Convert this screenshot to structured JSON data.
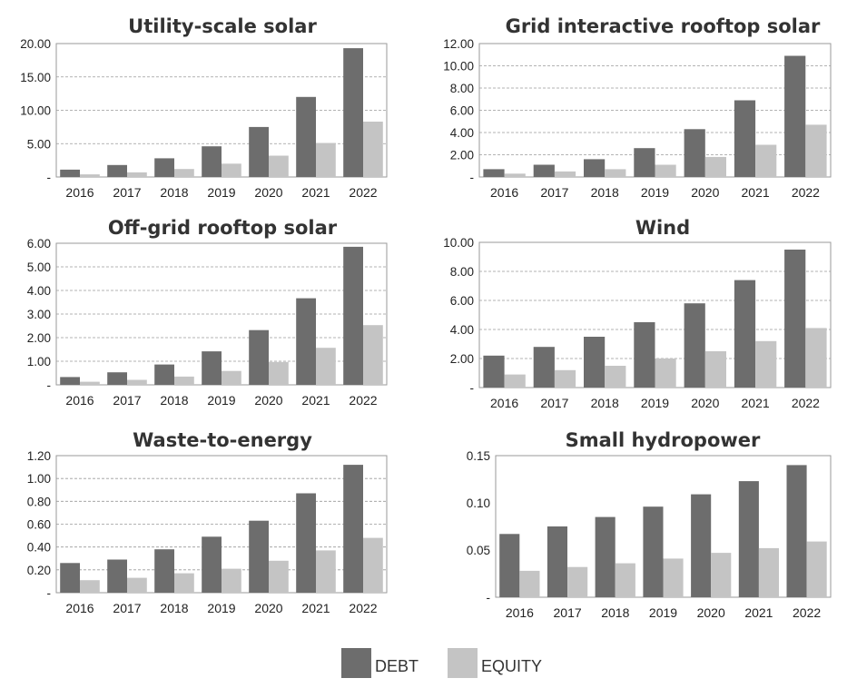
{
  "colors": {
    "debt": "#6d6d6d",
    "equity": "#c4c4c4"
  },
  "legend": {
    "debt_label": "DEBT",
    "equity_label": "EQUITY"
  },
  "chart_data": [
    {
      "type": "bar",
      "title": "Utility-scale solar",
      "categories": [
        "2016",
        "2017",
        "2018",
        "2019",
        "2020",
        "2021",
        "2022"
      ],
      "series": [
        {
          "name": "DEBT",
          "values": [
            1.1,
            1.8,
            2.8,
            4.6,
            7.5,
            12.0,
            19.3
          ]
        },
        {
          "name": "EQUITY",
          "values": [
            0.4,
            0.7,
            1.2,
            2.0,
            3.2,
            5.1,
            8.3
          ]
        }
      ],
      "ylim": [
        0,
        20
      ],
      "yticks": [
        0,
        5,
        10,
        15,
        20
      ],
      "ytick_labels": [
        "-",
        "5.00",
        "10.00",
        "15.00",
        "20.00"
      ]
    },
    {
      "type": "bar",
      "title": "Grid interactive rooftop solar",
      "categories": [
        "2016",
        "2017",
        "2018",
        "2019",
        "2020",
        "2021",
        "2022"
      ],
      "series": [
        {
          "name": "DEBT",
          "values": [
            0.7,
            1.1,
            1.6,
            2.6,
            4.3,
            6.9,
            10.9
          ]
        },
        {
          "name": "EQUITY",
          "values": [
            0.3,
            0.5,
            0.7,
            1.1,
            1.8,
            2.9,
            4.7
          ]
        }
      ],
      "ylim": [
        0,
        12
      ],
      "yticks": [
        0,
        2,
        4,
        6,
        8,
        10,
        12
      ],
      "ytick_labels": [
        "-",
        "2.00",
        "4.00",
        "6.00",
        "8.00",
        "10.00",
        "12.00"
      ]
    },
    {
      "type": "bar",
      "title": "Off-grid rooftop solar",
      "categories": [
        "2016",
        "2017",
        "2018",
        "2019",
        "2020",
        "2021",
        "2022"
      ],
      "series": [
        {
          "name": "DEBT",
          "values": [
            0.33,
            0.53,
            0.86,
            1.42,
            2.32,
            3.67,
            5.85
          ]
        },
        {
          "name": "EQUITY",
          "values": [
            0.13,
            0.21,
            0.35,
            0.59,
            0.97,
            1.57,
            2.53
          ]
        }
      ],
      "ylim": [
        0,
        6
      ],
      "yticks": [
        0,
        1,
        2,
        3,
        4,
        5,
        6
      ],
      "ytick_labels": [
        "-",
        "1.00",
        "2.00",
        "3.00",
        "4.00",
        "5.00",
        "6.00"
      ]
    },
    {
      "type": "bar",
      "title": "Wind",
      "categories": [
        "2016",
        "2017",
        "2018",
        "2019",
        "2020",
        "2021",
        "2022"
      ],
      "series": [
        {
          "name": "DEBT",
          "values": [
            2.2,
            2.8,
            3.5,
            4.5,
            5.8,
            7.4,
            9.5
          ]
        },
        {
          "name": "EQUITY",
          "values": [
            0.9,
            1.2,
            1.5,
            2.0,
            2.5,
            3.2,
            4.1
          ]
        }
      ],
      "ylim": [
        0,
        10
      ],
      "yticks": [
        0,
        2,
        4,
        6,
        8,
        10
      ],
      "ytick_labels": [
        "-",
        "2.00",
        "4.00",
        "6.00",
        "8.00",
        "10.00"
      ]
    },
    {
      "type": "bar",
      "title": "Waste-to-energy",
      "categories": [
        "2016",
        "2017",
        "2018",
        "2019",
        "2020",
        "2021",
        "2022"
      ],
      "series": [
        {
          "name": "DEBT",
          "values": [
            0.26,
            0.29,
            0.38,
            0.49,
            0.63,
            0.87,
            1.12
          ]
        },
        {
          "name": "EQUITY",
          "values": [
            0.11,
            0.13,
            0.17,
            0.21,
            0.28,
            0.37,
            0.48
          ]
        }
      ],
      "ylim": [
        0,
        1.2
      ],
      "yticks": [
        0,
        0.2,
        0.4,
        0.6,
        0.8,
        1.0,
        1.2
      ],
      "ytick_labels": [
        "-",
        "0.20",
        "0.40",
        "0.60",
        "0.80",
        "1.00",
        "1.20"
      ]
    },
    {
      "type": "bar",
      "title": "Small hydropower",
      "categories": [
        "2016",
        "2017",
        "2018",
        "2019",
        "2020",
        "2021",
        "2022"
      ],
      "series": [
        {
          "name": "DEBT",
          "values": [
            0.067,
            0.075,
            0.085,
            0.096,
            0.109,
            0.123,
            0.14
          ]
        },
        {
          "name": "EQUITY",
          "values": [
            0.028,
            0.032,
            0.036,
            0.041,
            0.047,
            0.052,
            0.059
          ]
        }
      ],
      "ylim": [
        0,
        0.15
      ],
      "yticks": [
        0,
        0.05,
        0.1,
        0.15
      ],
      "ytick_labels": [
        "-",
        "0.05",
        "0.10",
        "0.15"
      ],
      "grid": false
    }
  ]
}
